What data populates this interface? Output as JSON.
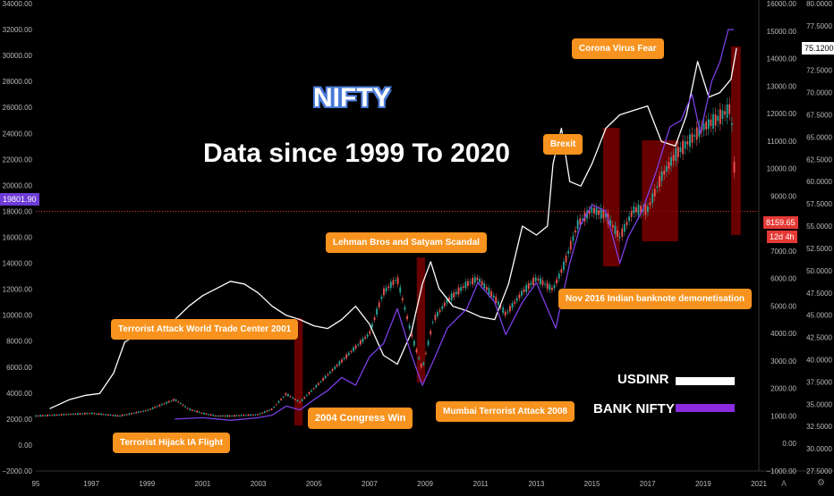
{
  "titles": {
    "main": "NIFTY",
    "sub": "Data since 1999 To 2020"
  },
  "legend": [
    {
      "label": "USDINR",
      "color": "#ffffff"
    },
    {
      "label": "BANK NIFTY",
      "color": "#8a2be2"
    }
  ],
  "badges": {
    "left_price": "19801.90",
    "right_price": "8159.65",
    "right_countdown": "12d 4h",
    "right_top_value": "75.1200"
  },
  "annotations": [
    {
      "id": "hijack",
      "text": "Terrorist Hijack IA Flight"
    },
    {
      "id": "wtc",
      "text": "Terrorist Attack World Trade Center 2001"
    },
    {
      "id": "congress",
      "text": "2004 Congress Win"
    },
    {
      "id": "lehman",
      "text": "Lehman Bros and Satyam Scandal"
    },
    {
      "id": "mumbai",
      "text": "Mumbai Terrorist Attack 2008"
    },
    {
      "id": "brexit",
      "text": "Brexit"
    },
    {
      "id": "demon",
      "text": "Nov 2016 Indian banknote demonetisation"
    },
    {
      "id": "corona",
      "text": "Corona Virus Fear"
    }
  ],
  "colors": {
    "background": "#000000",
    "candle_up": "#26a69a",
    "candle_down": "#ef5350",
    "usdinr": "#ffffff",
    "banknifty": "#7b3fe4",
    "event_zone": "#8b0000",
    "annotation": "#f7931e",
    "price_line": "#ff3b3b"
  },
  "chart_data": {
    "type": "line",
    "x_ticks": [
      "95",
      "1997",
      "1999",
      "2001",
      "2003",
      "2005",
      "2007",
      "2009",
      "2011",
      "2013",
      "2015",
      "2017",
      "2019",
      "2021"
    ],
    "y_left_ticks": [
      "34000.00",
      "32000.00",
      "30000.00",
      "28000.00",
      "26000.00",
      "24000.00",
      "22000.00",
      "20000.00",
      "18000.00",
      "16000.00",
      "14000.00",
      "12000.00",
      "10000.00",
      "8000.00",
      "6000.00",
      "4000.00",
      "2000.00",
      "0.00",
      "−2000.00"
    ],
    "y_right1_ticks": [
      "16000.00",
      "15000.00",
      "14000.00",
      "13000.00",
      "12000.00",
      "11000.00",
      "10000.00",
      "9000.00",
      "8000.00",
      "7000.00",
      "6000.00",
      "5000.00",
      "4000.00",
      "3000.00",
      "2000.00",
      "1000.00",
      "0.00",
      "−1000.00"
    ],
    "y_right2_ticks": [
      "80.0000",
      "77.5000",
      "75.0000",
      "72.5000",
      "70.0000",
      "67.5000",
      "65.0000",
      "62.5000",
      "60.0000",
      "57.5000",
      "55.0000",
      "52.5000",
      "50.0000",
      "47.5000",
      "45.0000",
      "42.5000",
      "40.0000",
      "37.5000",
      "35.0000",
      "32.5000",
      "30.0000",
      "27.5000"
    ],
    "ylim_left": [
      -2000,
      34000
    ],
    "ylim_nifty": [
      -1000,
      16000
    ],
    "ylim_usdinr": [
      27.5,
      80
    ],
    "price_line_value_left": 18000,
    "series": [
      {
        "name": "USDINR",
        "axis": "usdinr",
        "x": [
          1995.5,
          1996.2,
          1996.8,
          1997.3,
          1997.8,
          1998.2,
          1998.5,
          1999.0,
          1999.5,
          2000.0,
          2000.5,
          2001.0,
          2001.5,
          2002.0,
          2002.5,
          2003.0,
          2003.5,
          2004.0,
          2004.5,
          2005.0,
          2005.5,
          2006.0,
          2006.5,
          2007.0,
          2007.5,
          2008.0,
          2008.5,
          2008.9,
          2009.2,
          2009.5,
          2010.0,
          2010.5,
          2011.0,
          2011.5,
          2012.0,
          2012.5,
          2013.0,
          2013.4,
          2013.6,
          2013.9,
          2014.2,
          2014.6,
          2015.0,
          2015.5,
          2016.0,
          2016.5,
          2017.0,
          2017.5,
          2018.0,
          2018.4,
          2018.8,
          2019.2,
          2019.6,
          2020.0,
          2020.2
        ],
        "values": [
          34.5,
          35.5,
          36.0,
          36.2,
          38.5,
          42.0,
          42.5,
          43.0,
          43.5,
          44.5,
          46.0,
          47.2,
          48.0,
          48.8,
          48.5,
          47.5,
          46.0,
          45.0,
          44.5,
          43.8,
          43.5,
          44.5,
          46.0,
          44.0,
          40.5,
          39.5,
          43.0,
          48.5,
          51.0,
          48.0,
          46.0,
          45.5,
          44.8,
          44.5,
          48.5,
          55.0,
          54.0,
          55.0,
          62.0,
          66.0,
          60.0,
          59.5,
          62.0,
          66.0,
          67.5,
          68.0,
          68.5,
          64.5,
          64.0,
          67.5,
          73.5,
          69.5,
          70.0,
          71.5,
          75.0
        ]
      },
      {
        "name": "BANK NIFTY",
        "axis": "left",
        "x": [
          2000.0,
          2001.0,
          2002.0,
          2003.0,
          2003.5,
          2004.0,
          2004.5,
          2005.0,
          2005.5,
          2006.0,
          2006.5,
          2007.0,
          2007.5,
          2008.0,
          2008.5,
          2008.9,
          2009.3,
          2009.8,
          2010.5,
          2010.9,
          2011.5,
          2011.9,
          2012.5,
          2013.0,
          2013.5,
          2013.7,
          2014.2,
          2014.6,
          2015.0,
          2015.5,
          2016.0,
          2016.3,
          2016.8,
          2017.3,
          2017.8,
          2018.2,
          2018.6,
          2018.9,
          2019.3,
          2019.6,
          2019.9,
          2020.1
        ],
        "values": [
          2000,
          2100,
          1900,
          2100,
          2300,
          3000,
          2700,
          3500,
          4200,
          5200,
          4600,
          6800,
          7800,
          10500,
          7000,
          4600,
          6500,
          9000,
          10500,
          12500,
          11000,
          8500,
          11000,
          12500,
          10000,
          9000,
          14000,
          17000,
          18500,
          18000,
          14000,
          16000,
          18000,
          21000,
          24500,
          25000,
          27000,
          24000,
          28000,
          29500,
          32000,
          32000
        ]
      }
    ],
    "event_zones_x": [
      [
        2004.3,
        2004.6
      ],
      [
        2008.7,
        2009.0
      ],
      [
        2015.4,
        2016.0
      ],
      [
        2016.8,
        2018.1
      ],
      [
        2020.0,
        2020.35
      ]
    ]
  }
}
